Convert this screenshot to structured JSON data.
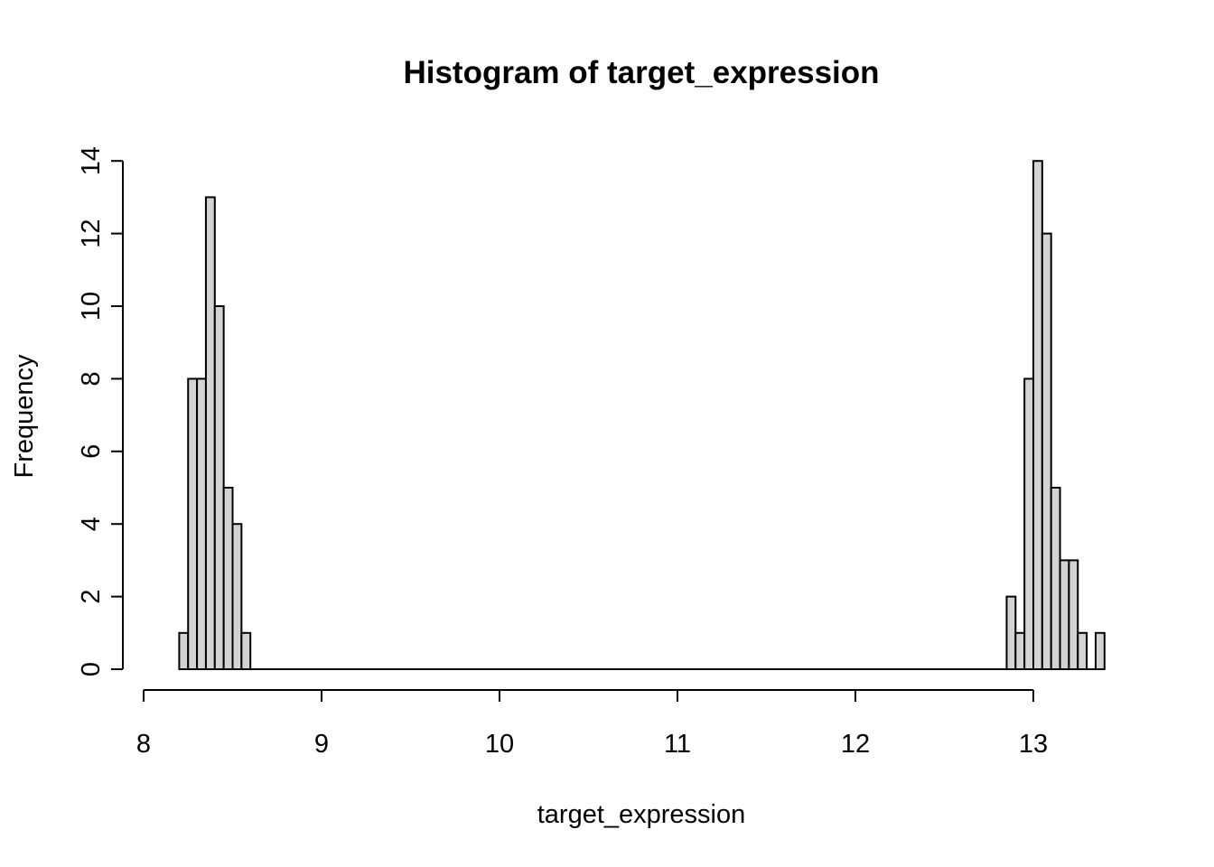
{
  "chart_data": {
    "type": "bar",
    "title": "Histogram of target_expression",
    "xlabel": "target_expression",
    "ylabel": "Frequency",
    "xlim": [
      8,
      13.4
    ],
    "ylim": [
      0,
      14
    ],
    "x_ticks": [
      8,
      9,
      10,
      11,
      12,
      13
    ],
    "y_ticks": [
      0,
      2,
      4,
      6,
      8,
      10,
      12,
      14
    ],
    "bin_width": 0.05,
    "bins": [
      {
        "start": 8.2,
        "end": 8.25,
        "count": 1
      },
      {
        "start": 8.25,
        "end": 8.3,
        "count": 8
      },
      {
        "start": 8.3,
        "end": 8.35,
        "count": 8
      },
      {
        "start": 8.35,
        "end": 8.4,
        "count": 13
      },
      {
        "start": 8.4,
        "end": 8.45,
        "count": 10
      },
      {
        "start": 8.45,
        "end": 8.5,
        "count": 5
      },
      {
        "start": 8.5,
        "end": 8.55,
        "count": 4
      },
      {
        "start": 8.55,
        "end": 8.6,
        "count": 1
      },
      {
        "start": 12.85,
        "end": 12.9,
        "count": 2
      },
      {
        "start": 12.9,
        "end": 12.95,
        "count": 1
      },
      {
        "start": 12.95,
        "end": 13.0,
        "count": 8
      },
      {
        "start": 13.0,
        "end": 13.05,
        "count": 14
      },
      {
        "start": 13.05,
        "end": 13.1,
        "count": 12
      },
      {
        "start": 13.1,
        "end": 13.15,
        "count": 5
      },
      {
        "start": 13.15,
        "end": 13.2,
        "count": 3
      },
      {
        "start": 13.2,
        "end": 13.25,
        "count": 3
      },
      {
        "start": 13.25,
        "end": 13.3,
        "count": 1
      },
      {
        "start": 13.3,
        "end": 13.35,
        "count": 0
      },
      {
        "start": 13.35,
        "end": 13.4,
        "count": 1
      }
    ],
    "baseline_range": [
      8.2,
      13.4
    ],
    "bar_fill": "#d3d3d3",
    "bar_stroke": "#000000",
    "grid": false
  }
}
